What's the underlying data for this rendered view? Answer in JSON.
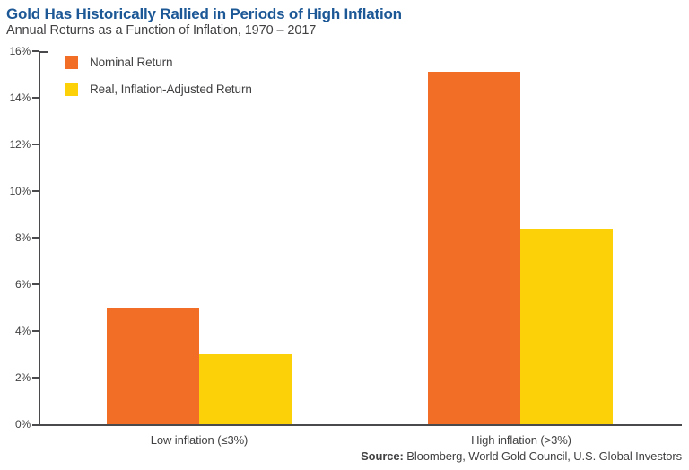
{
  "title": "Gold Has Historically Rallied in Periods of High Inflation",
  "subtitle": "Annual Returns as a Function of Inflation, 1970 – 2017",
  "source": {
    "label": "Source:",
    "text": " Bloomberg, World Gold Council, U.S. Global Investors"
  },
  "colors": {
    "nominal_orange": "#F26D25",
    "real_yellow": "#FDD108",
    "title_blue": "#1C5796",
    "text_gray": "#414042",
    "axis_gray": "#4A4A4C"
  },
  "chart_data": {
    "type": "bar",
    "categories": [
      "Low inflation (≤3%)",
      "High inflation (>3%)"
    ],
    "series": [
      {
        "name": "Nominal Return",
        "values": [
          5.0,
          15.1
        ],
        "color": "#F26D25"
      },
      {
        "name": "Real, Inflation-Adjusted Return",
        "values": [
          3.0,
          8.4
        ],
        "color": "#FDD108"
      }
    ],
    "ylabel": "",
    "xlabel": "",
    "ylim": [
      0,
      16
    ],
    "ytick_step": 2,
    "ytick_suffix": "%",
    "grid": false,
    "legend_position": "top-left"
  }
}
